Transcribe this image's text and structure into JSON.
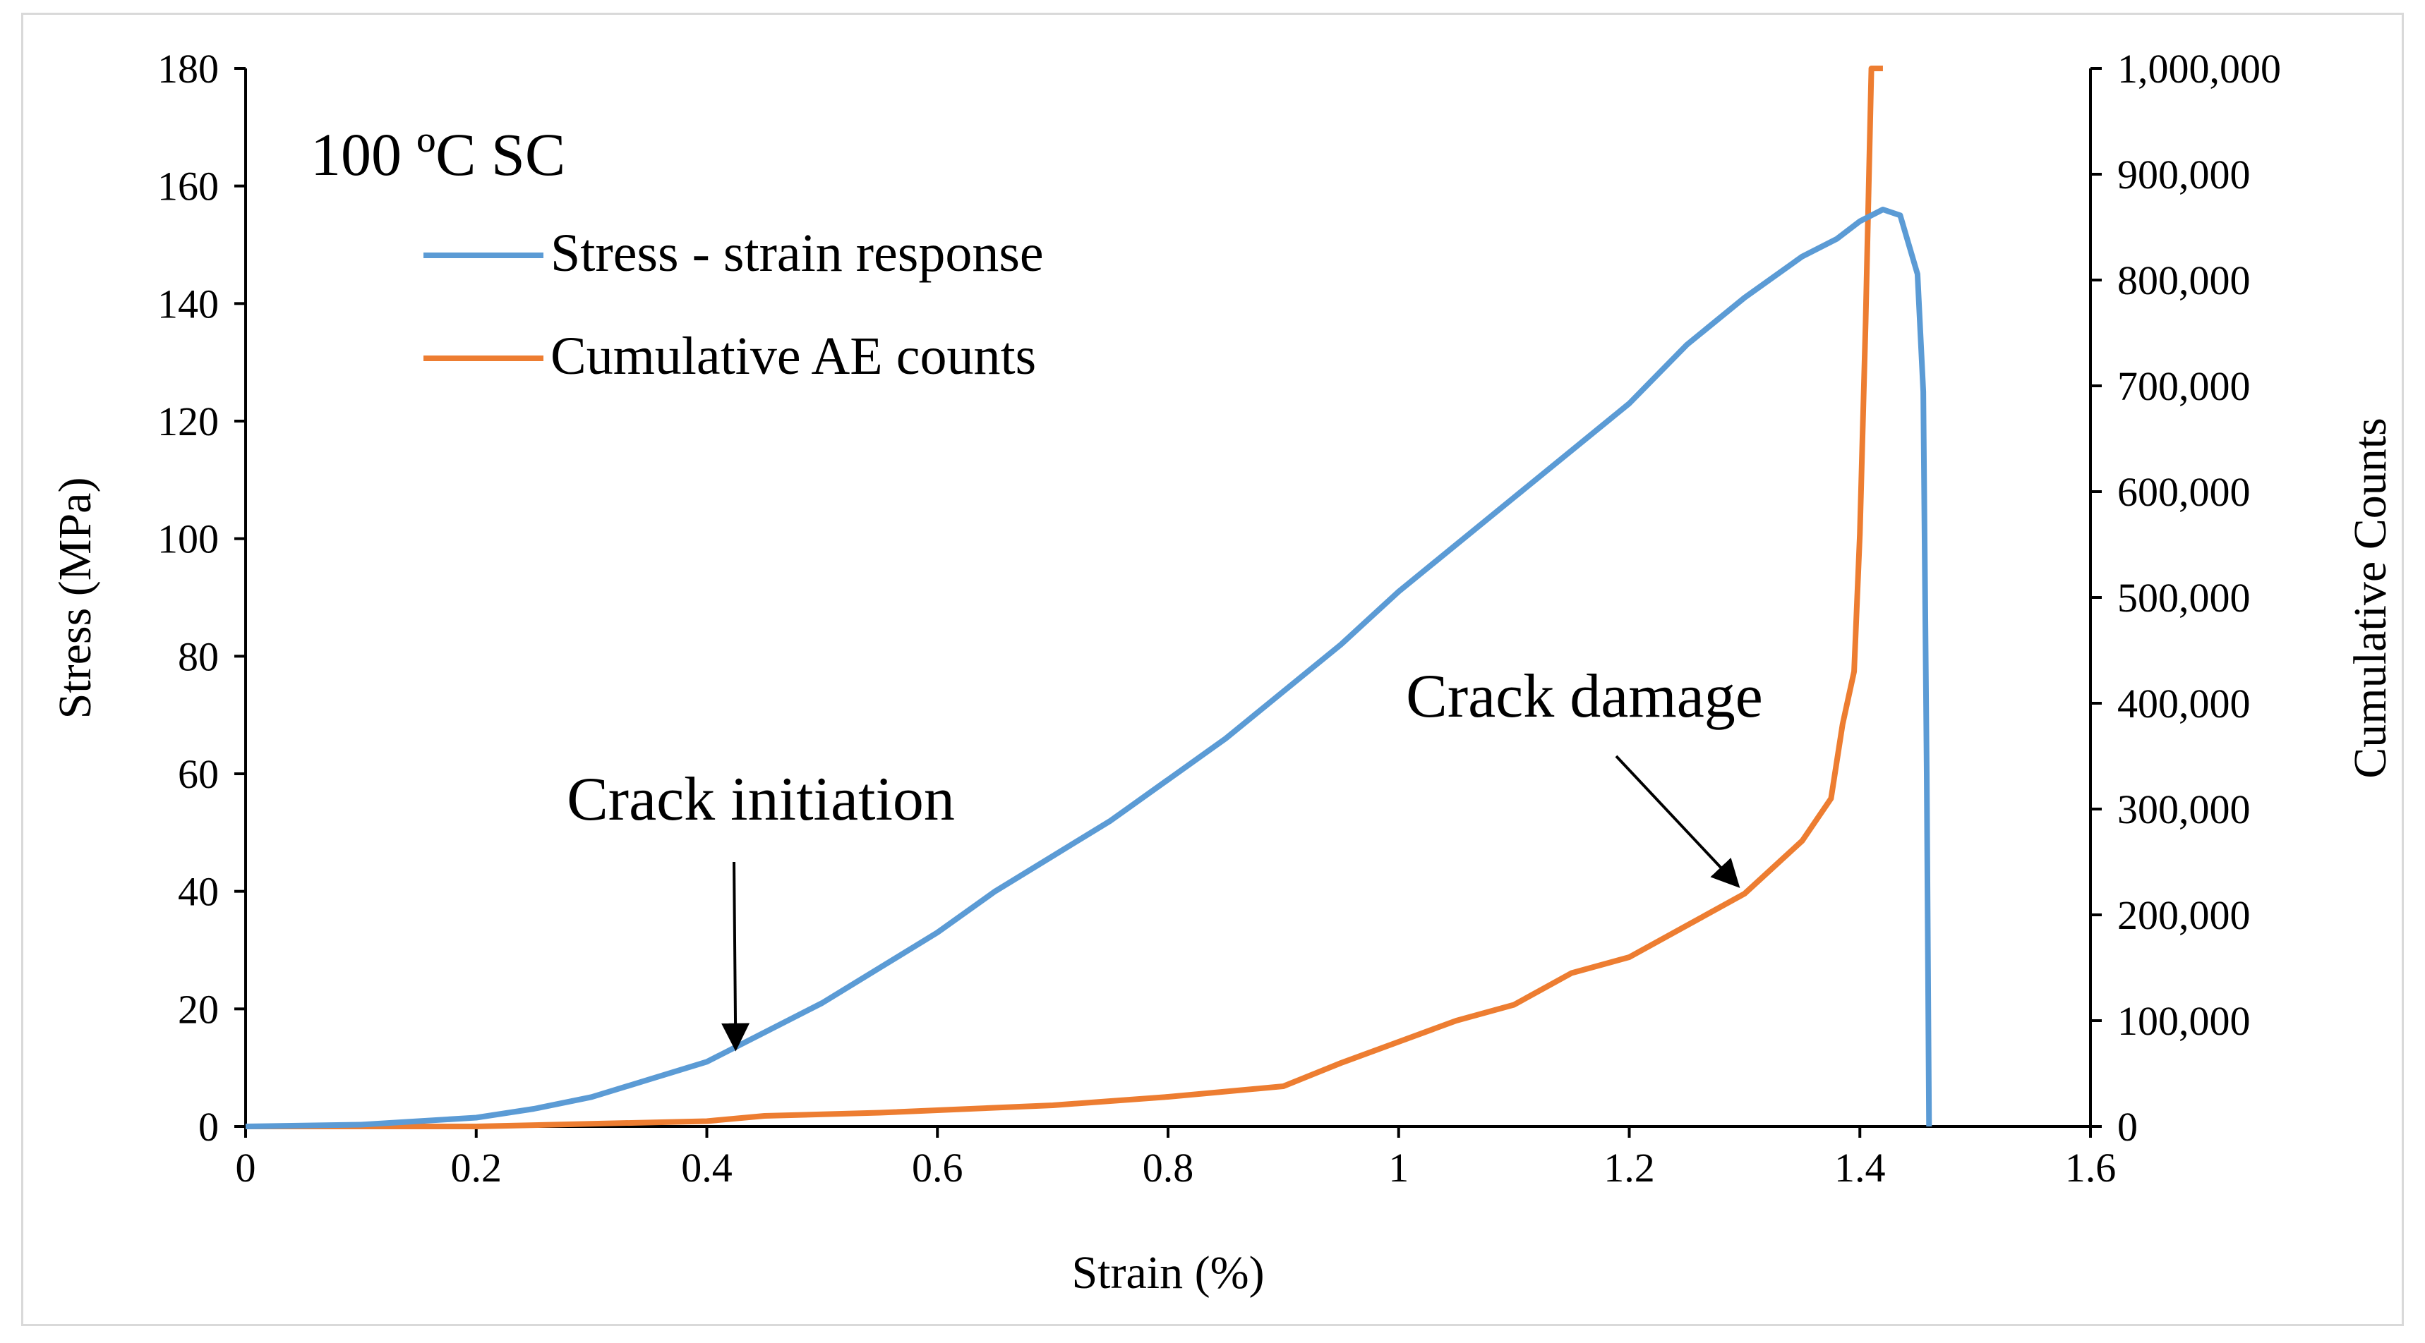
{
  "chart_data": {
    "type": "line",
    "title": "100 ºC SC",
    "xlabel": "Strain (%)",
    "ylabel": "Stress (MPa)",
    "y2label": "Cumulative Counts",
    "xlim": [
      0,
      1.6
    ],
    "ylim": [
      0,
      180
    ],
    "y2lim": [
      0,
      1000000
    ],
    "xticks": [
      "0",
      "0.2",
      "0.4",
      "0.6",
      "0.8",
      "1",
      "1.2",
      "1.4",
      "1.6"
    ],
    "yticks": [
      "0",
      "20",
      "40",
      "60",
      "80",
      "100",
      "120",
      "140",
      "160",
      "180"
    ],
    "y2ticks": [
      "0",
      "100,000",
      "200,000",
      "300,000",
      "400,000",
      "500,000",
      "600,000",
      "700,000",
      "800,000",
      "900,000",
      "1,000,000"
    ],
    "grid": false,
    "legend_position": "top-left",
    "series": [
      {
        "name": "Stress - strain response",
        "axis": "left",
        "color": "#5b9bd5",
        "x": [
          0,
          0.1,
          0.2,
          0.25,
          0.3,
          0.35,
          0.4,
          0.45,
          0.5,
          0.55,
          0.6,
          0.65,
          0.7,
          0.75,
          0.8,
          0.85,
          0.9,
          0.95,
          1.0,
          1.05,
          1.1,
          1.15,
          1.2,
          1.25,
          1.3,
          1.35,
          1.38,
          1.4,
          1.42,
          1.435,
          1.45,
          1.455,
          1.458,
          1.46
        ],
        "y": [
          0,
          0.3,
          1.5,
          3,
          5,
          8,
          11,
          16,
          21,
          27,
          33,
          40,
          46,
          52,
          59,
          66,
          74,
          82,
          91,
          99,
          107,
          115,
          123,
          133,
          141,
          148,
          151,
          154,
          156,
          155,
          145,
          125,
          60,
          0
        ]
      },
      {
        "name": "Cumulative AE counts",
        "axis": "right",
        "color": "#ed7d31",
        "x": [
          0,
          0.2,
          0.4,
          0.45,
          0.55,
          0.7,
          0.8,
          0.9,
          0.95,
          1.0,
          1.05,
          1.1,
          1.15,
          1.2,
          1.25,
          1.3,
          1.35,
          1.375,
          1.385,
          1.395,
          1.4,
          1.405,
          1.41,
          1.42
        ],
        "y": [
          0,
          0,
          5000,
          10000,
          13000,
          20000,
          28000,
          38000,
          60000,
          80000,
          100000,
          115000,
          145000,
          160000,
          190000,
          220000,
          270000,
          310000,
          380000,
          430000,
          560000,
          760000,
          1000000,
          1000000
        ]
      }
    ],
    "annotations": [
      {
        "text": "Crack initiation",
        "arrow_to_x": 0.425,
        "arrow_to_y": 13
      },
      {
        "text": "Crack damage",
        "arrow_to_x": 1.3,
        "arrow_to_y_counts": 220000
      }
    ]
  }
}
